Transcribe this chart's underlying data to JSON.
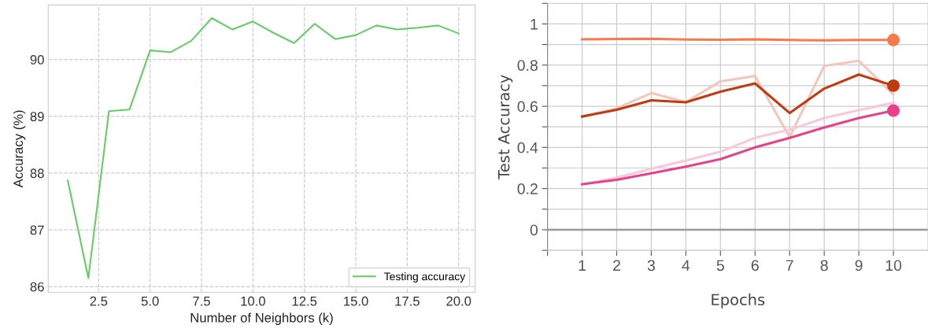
{
  "chart_data": [
    {
      "type": "line",
      "xlabel": "Number of Neighbors (k)",
      "ylabel": "Accuracy (%)",
      "x": [
        1,
        2,
        3,
        4,
        5,
        6,
        7,
        8,
        9,
        10,
        11,
        12,
        13,
        14,
        15,
        16,
        17,
        18,
        19,
        20
      ],
      "series": [
        {
          "name": "Testing accuracy",
          "color": "#66cc66",
          "values": [
            87.87,
            86.15,
            89.09,
            89.12,
            90.16,
            90.13,
            90.33,
            90.73,
            90.53,
            90.67,
            90.47,
            90.29,
            90.63,
            90.36,
            90.43,
            90.6,
            90.53,
            90.56,
            90.6,
            90.46
          ]
        }
      ],
      "xlim": [
        0.05,
        20.8
      ],
      "ylim": [
        85.9,
        90.96
      ],
      "xticks": [
        2.5,
        {
          "value": 5,
          "label": "5.0"
        },
        7.5,
        {
          "value": 10,
          "label": "10.0"
        },
        12.5,
        {
          "value": 15,
          "label": "15.0"
        },
        17.5,
        {
          "value": 20,
          "label": "20.0"
        }
      ],
      "yticks": [
        86,
        87,
        88,
        89,
        90
      ],
      "grid": true,
      "legend": "bottom right"
    },
    {
      "type": "line",
      "xlabel": "Epochs",
      "ylabel": "Test Accuracy",
      "x": [
        1,
        2,
        3,
        4,
        5,
        6,
        7,
        8,
        9,
        10
      ],
      "series": [
        {
          "color": "#f2c6bb",
          "values": [
            0.55,
            0.59,
            0.664,
            0.62,
            0.721,
            0.747,
            0.45,
            0.796,
            0.821,
            0.657
          ]
        },
        {
          "color": "#f9c8da",
          "values": [
            0.221,
            0.253,
            0.296,
            0.336,
            0.379,
            0.447,
            0.486,
            0.543,
            0.581,
            0.617
          ]
        },
        {
          "color": "#f87a4c",
          "values": [
            0.925,
            0.927,
            0.928,
            0.924,
            0.923,
            0.925,
            0.922,
            0.92,
            0.922,
            0.922
          ]
        },
        {
          "color": "#c13a10",
          "values": [
            0.55,
            0.583,
            0.629,
            0.619,
            0.671,
            0.711,
            0.567,
            0.686,
            0.754,
            0.7
          ]
        },
        {
          "color": "#e8418a",
          "values": [
            0.221,
            0.243,
            0.274,
            0.307,
            0.343,
            0.4,
            0.446,
            0.497,
            0.543,
            0.579
          ]
        },
        {
          "type": "scatter",
          "color": "#f87a4c",
          "values": [
            null,
            null,
            null,
            null,
            null,
            null,
            null,
            null,
            null,
            0.922
          ]
        },
        {
          "type": "scatter",
          "color": "#c13a10",
          "values": [
            null,
            null,
            null,
            null,
            null,
            null,
            null,
            null,
            null,
            0.7
          ]
        },
        {
          "type": "scatter",
          "color": "#e8418a",
          "values": [
            null,
            null,
            null,
            null,
            null,
            null,
            null,
            null,
            null,
            0.579
          ]
        }
      ],
      "xlim": [
        0,
        11
      ],
      "ylim": [
        -0.1,
        1.1
      ],
      "xticks": [
        {
          "value": 0,
          "label": null
        },
        1,
        2,
        3,
        4,
        5,
        6,
        7,
        8,
        9,
        10
      ],
      "yticks": [
        {
          "value": -0.1,
          "label": null
        },
        0,
        {
          "value": 0.1,
          "label": null
        },
        0.2,
        {
          "value": 0.3,
          "label": null
        },
        0.4,
        {
          "value": 0.5,
          "label": null
        },
        0.6,
        {
          "value": 0.7,
          "label": null
        },
        0.8,
        {
          "value": 0.9,
          "label": null
        },
        1,
        {
          "value": 1.1,
          "label": null
        }
      ],
      "ref_lines": [
        {
          "axis": "y",
          "value": 0,
          "color": "#999999"
        }
      ],
      "grid": true
    }
  ]
}
